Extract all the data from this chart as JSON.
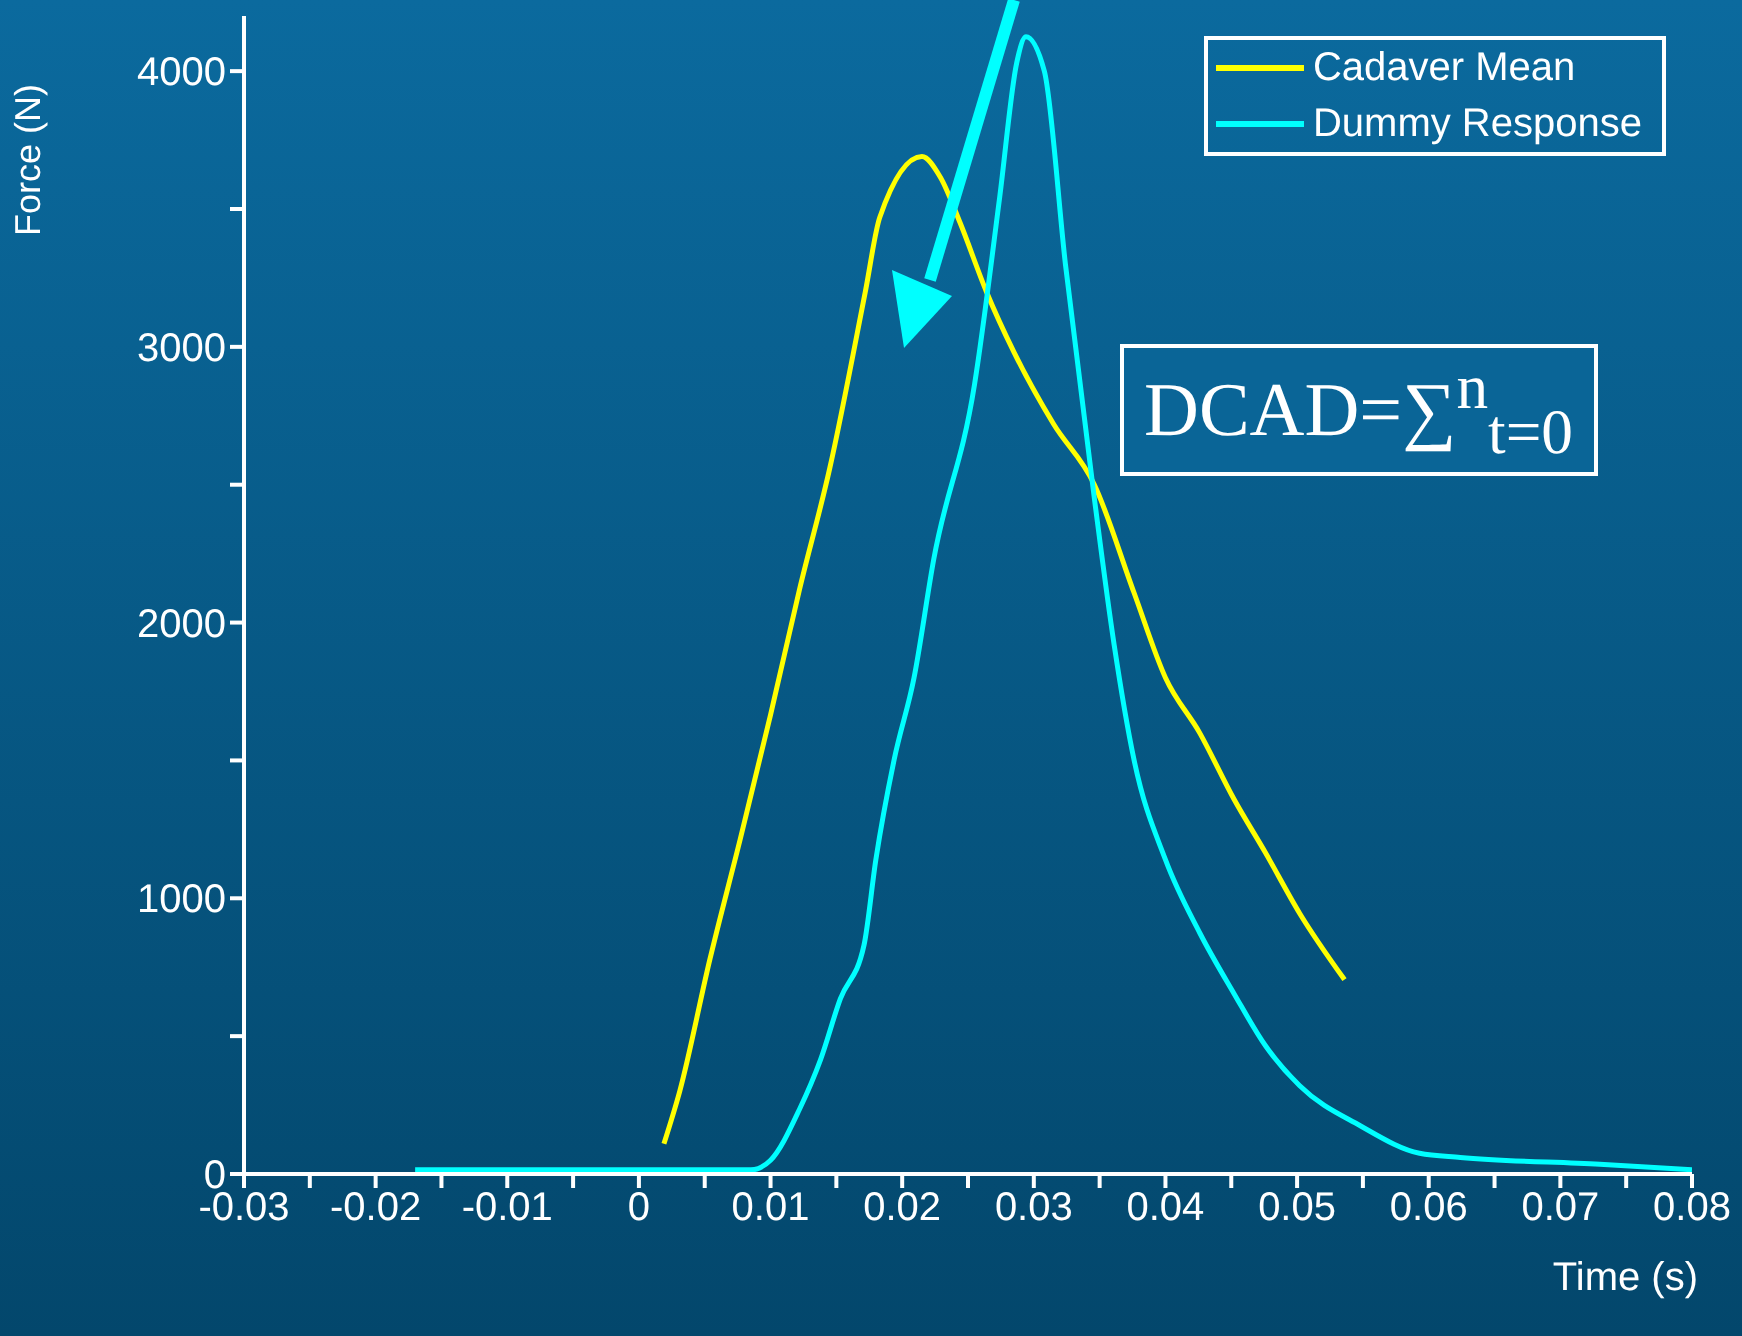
{
  "chart_data": {
    "type": "line",
    "xlabel": "Time (s)",
    "ylabel": "Force (N)",
    "xlim": [
      -0.03,
      0.08
    ],
    "ylim": [
      0,
      4200
    ],
    "xticks": [
      -0.03,
      {
        "value": -0.025,
        "label": null
      },
      -0.02,
      {
        "value": -0.015,
        "label": null
      },
      -0.01,
      {
        "value": -0.005,
        "label": null
      },
      0,
      {
        "value": 0.005,
        "label": null
      },
      0.01,
      {
        "value": 0.015,
        "label": null
      },
      0.02,
      {
        "value": 0.025,
        "label": null
      },
      0.03,
      {
        "value": 0.035,
        "label": null
      },
      0.04,
      {
        "value": 0.045,
        "label": null
      },
      0.05,
      {
        "value": 0.055,
        "label": null
      },
      0.06,
      {
        "value": 0.065,
        "label": null
      },
      0.07,
      {
        "value": 0.075,
        "label": null
      },
      0.08
    ],
    "yticks": [
      0,
      {
        "value": 500,
        "label": null
      },
      1000,
      {
        "value": 1500,
        "label": null
      },
      2000,
      {
        "value": 2500,
        "label": null
      },
      3000,
      {
        "value": 3500,
        "label": null
      },
      4000
    ],
    "legend": "top right",
    "marker": "none",
    "line_style": "solid",
    "annotations": [
      "DCAD=∑$^{n}$$_{t=0}$"
    ],
    "series": [
      {
        "name": "Cadaver Mean",
        "color": "#ffff00",
        "x": [
          0.0019,
          0.0031,
          0.0054,
          0.0077,
          0.01,
          0.0122,
          0.0145,
          0.0172,
          0.0183,
          0.0215,
          0.0229,
          0.0244,
          0.0264,
          0.0285,
          0.0315,
          0.0346,
          0.0376,
          0.04,
          0.0426,
          0.0452,
          0.0476,
          0.0502,
          0.0536
        ],
        "values": [
          110,
          300,
          780,
          1215,
          1665,
          2120,
          2560,
          3200,
          3470,
          3690,
          3615,
          3450,
          3200,
          2980,
          2720,
          2500,
          2110,
          1800,
          1600,
          1360,
          1165,
          945,
          705
        ]
      },
      {
        "name": "Dummy Response",
        "color": "#00ffff",
        "x": [
          -0.017,
          0,
          0.0085,
          0.01,
          0.0122,
          0.0138,
          0.0153,
          0.0171,
          0.018,
          0.0194,
          0.0209,
          0.0224,
          0.0255,
          0.0274,
          0.0287,
          0.0294,
          0.0308,
          0.0324,
          0.0346,
          0.0361,
          0.0376,
          0.04,
          0.0426,
          0.0452,
          0.0476,
          0.0502,
          0.0548,
          0.0593,
          0.0624,
          0.073,
          0.08
        ],
        "values": [
          15,
          15,
          15,
          50,
          235,
          415,
          635,
          830,
          1140,
          1505,
          1800,
          2230,
          2865,
          3540,
          4030,
          4125,
          4000,
          3300,
          2450,
          1920,
          1505,
          1140,
          875,
          655,
          465,
          320,
          175,
          75,
          60,
          35,
          15
        ]
      }
    ]
  }
}
